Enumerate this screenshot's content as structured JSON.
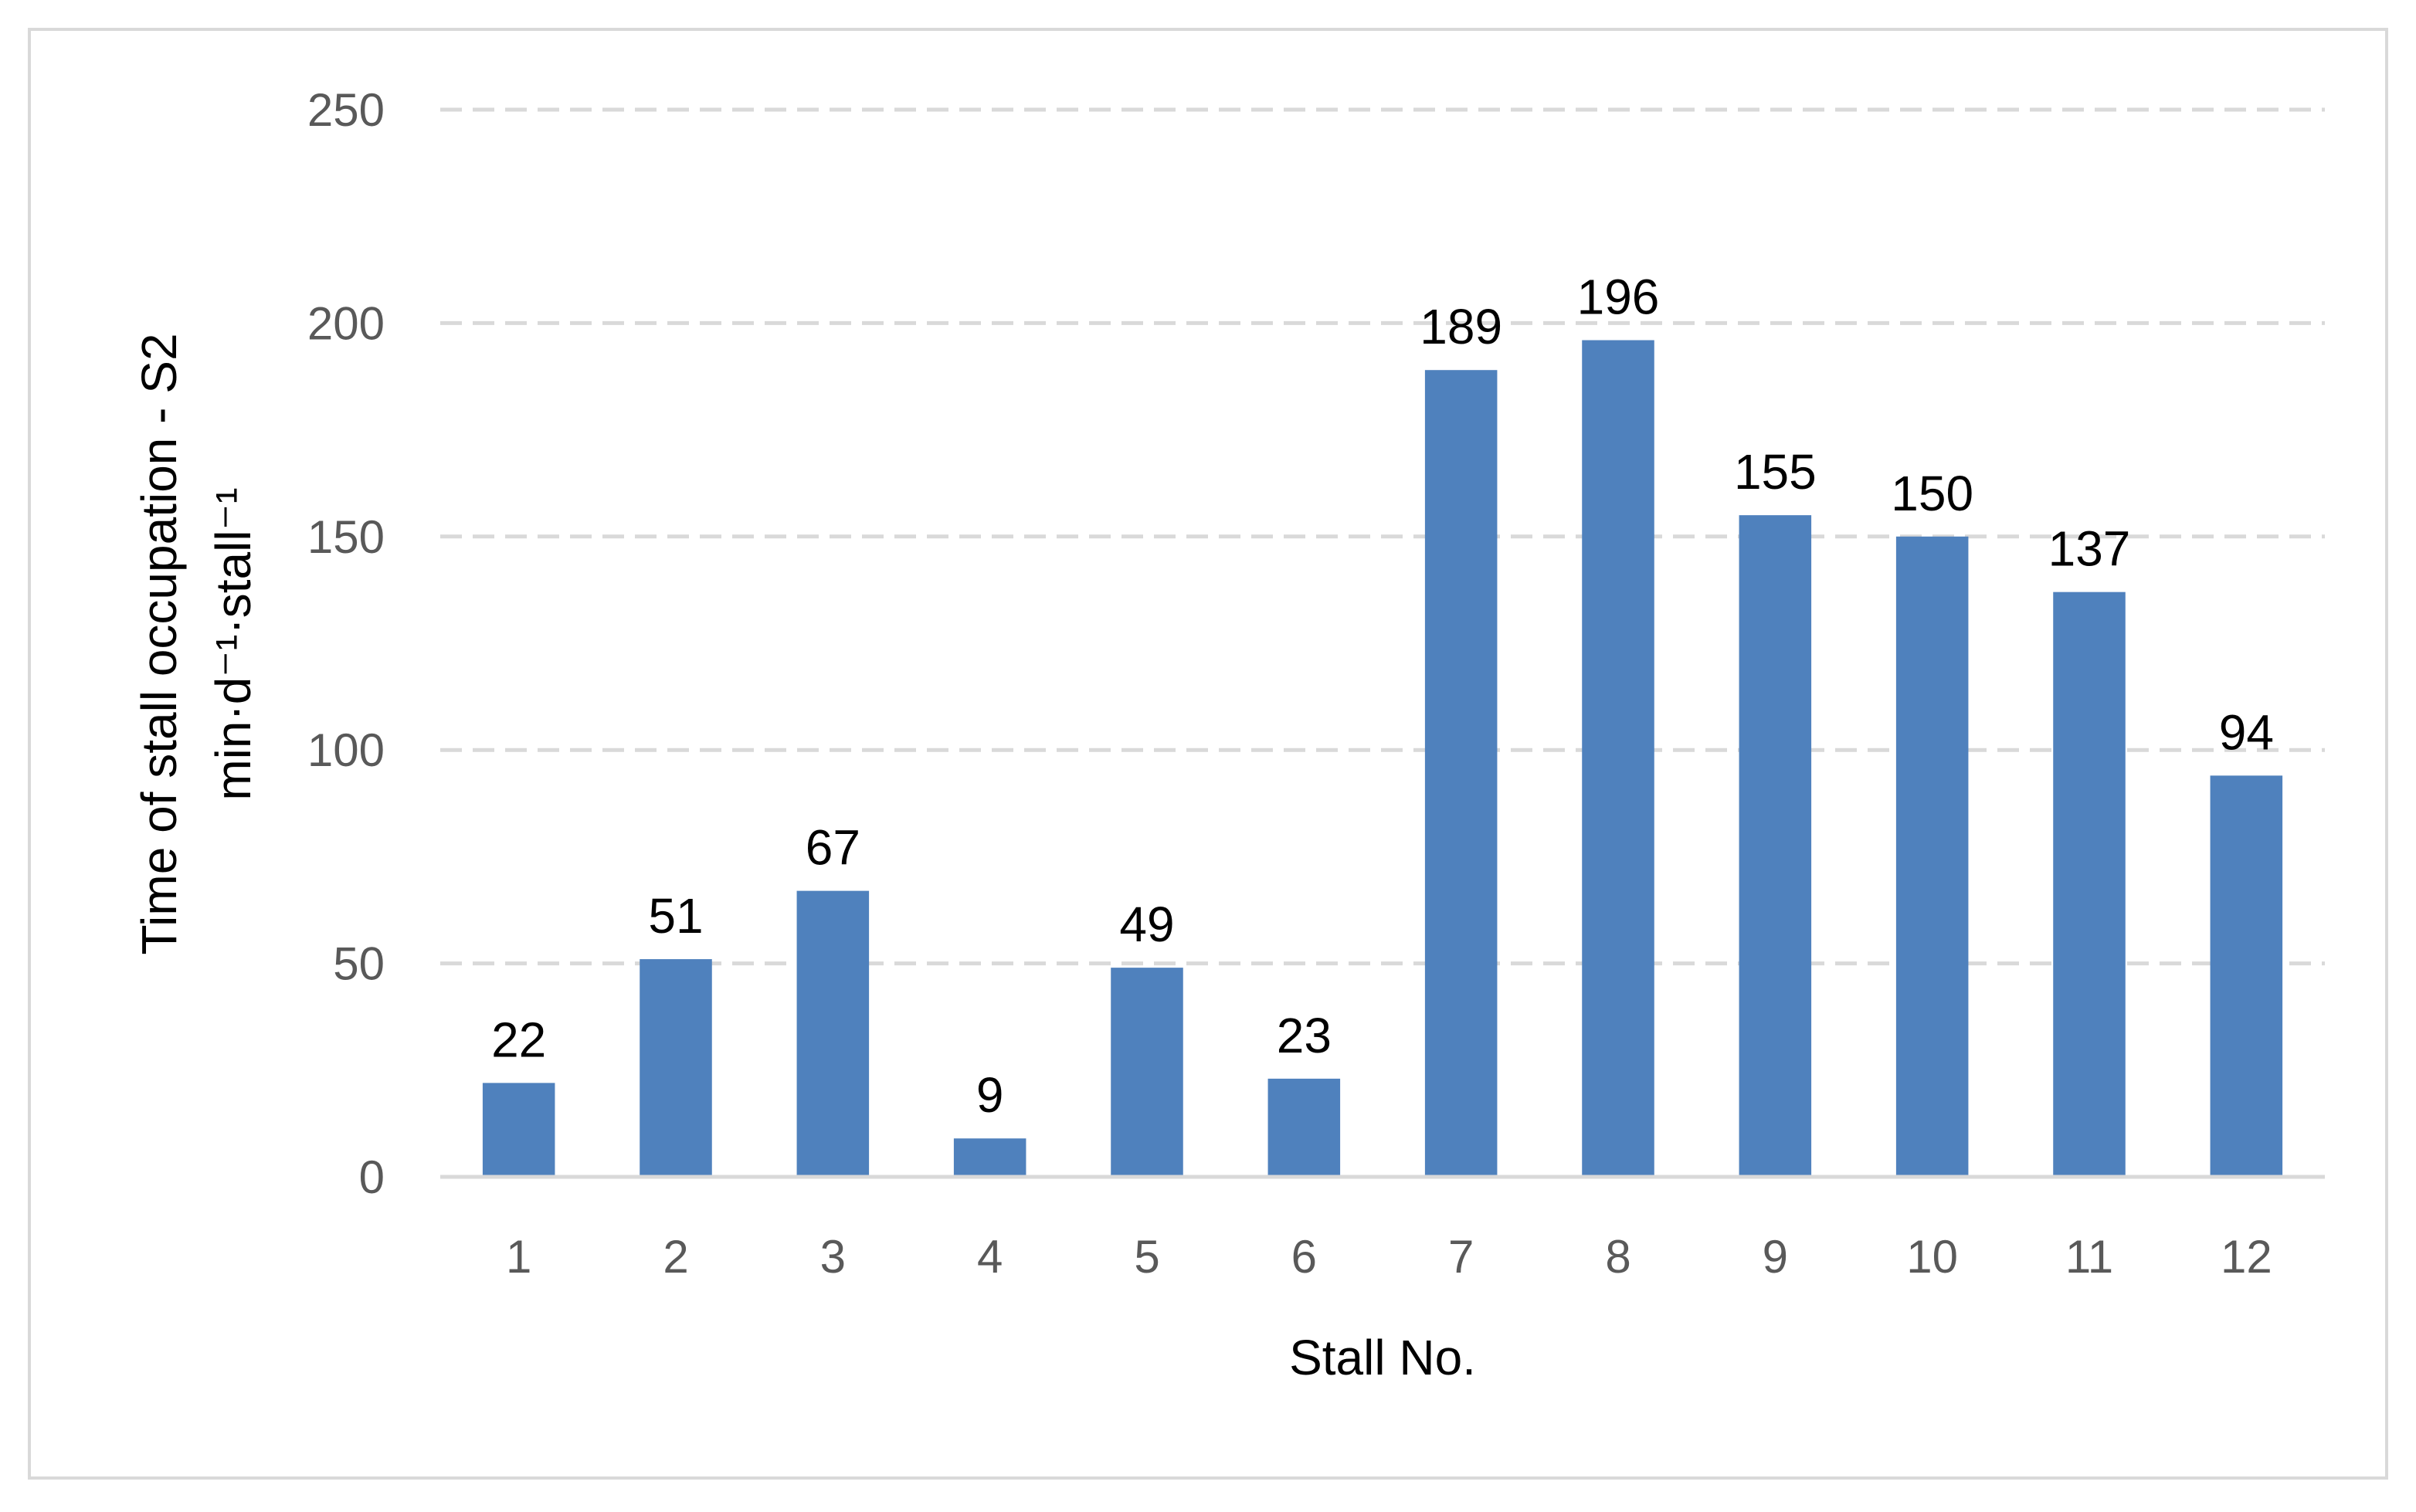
{
  "chart_data": {
    "type": "bar",
    "categories": [
      "1",
      "2",
      "3",
      "4",
      "5",
      "6",
      "7",
      "8",
      "9",
      "10",
      "11",
      "12"
    ],
    "values": [
      22,
      51,
      67,
      9,
      49,
      23,
      189,
      196,
      155,
      150,
      137,
      94
    ],
    "xlabel": "Stall No.",
    "ylabel_line1": "Time of stall occupation - S2",
    "ylabel_line2": "min·d⁻¹·stall⁻¹",
    "ylim": [
      0,
      250
    ],
    "yticks": [
      0,
      50,
      100,
      150,
      200,
      250
    ],
    "grid": "horizontal dashed",
    "legend": "none",
    "data_labels": true,
    "bar_color": "#4f81bd",
    "grid_color": "#d9d9d9",
    "axis_color": "#d9d9d9"
  }
}
